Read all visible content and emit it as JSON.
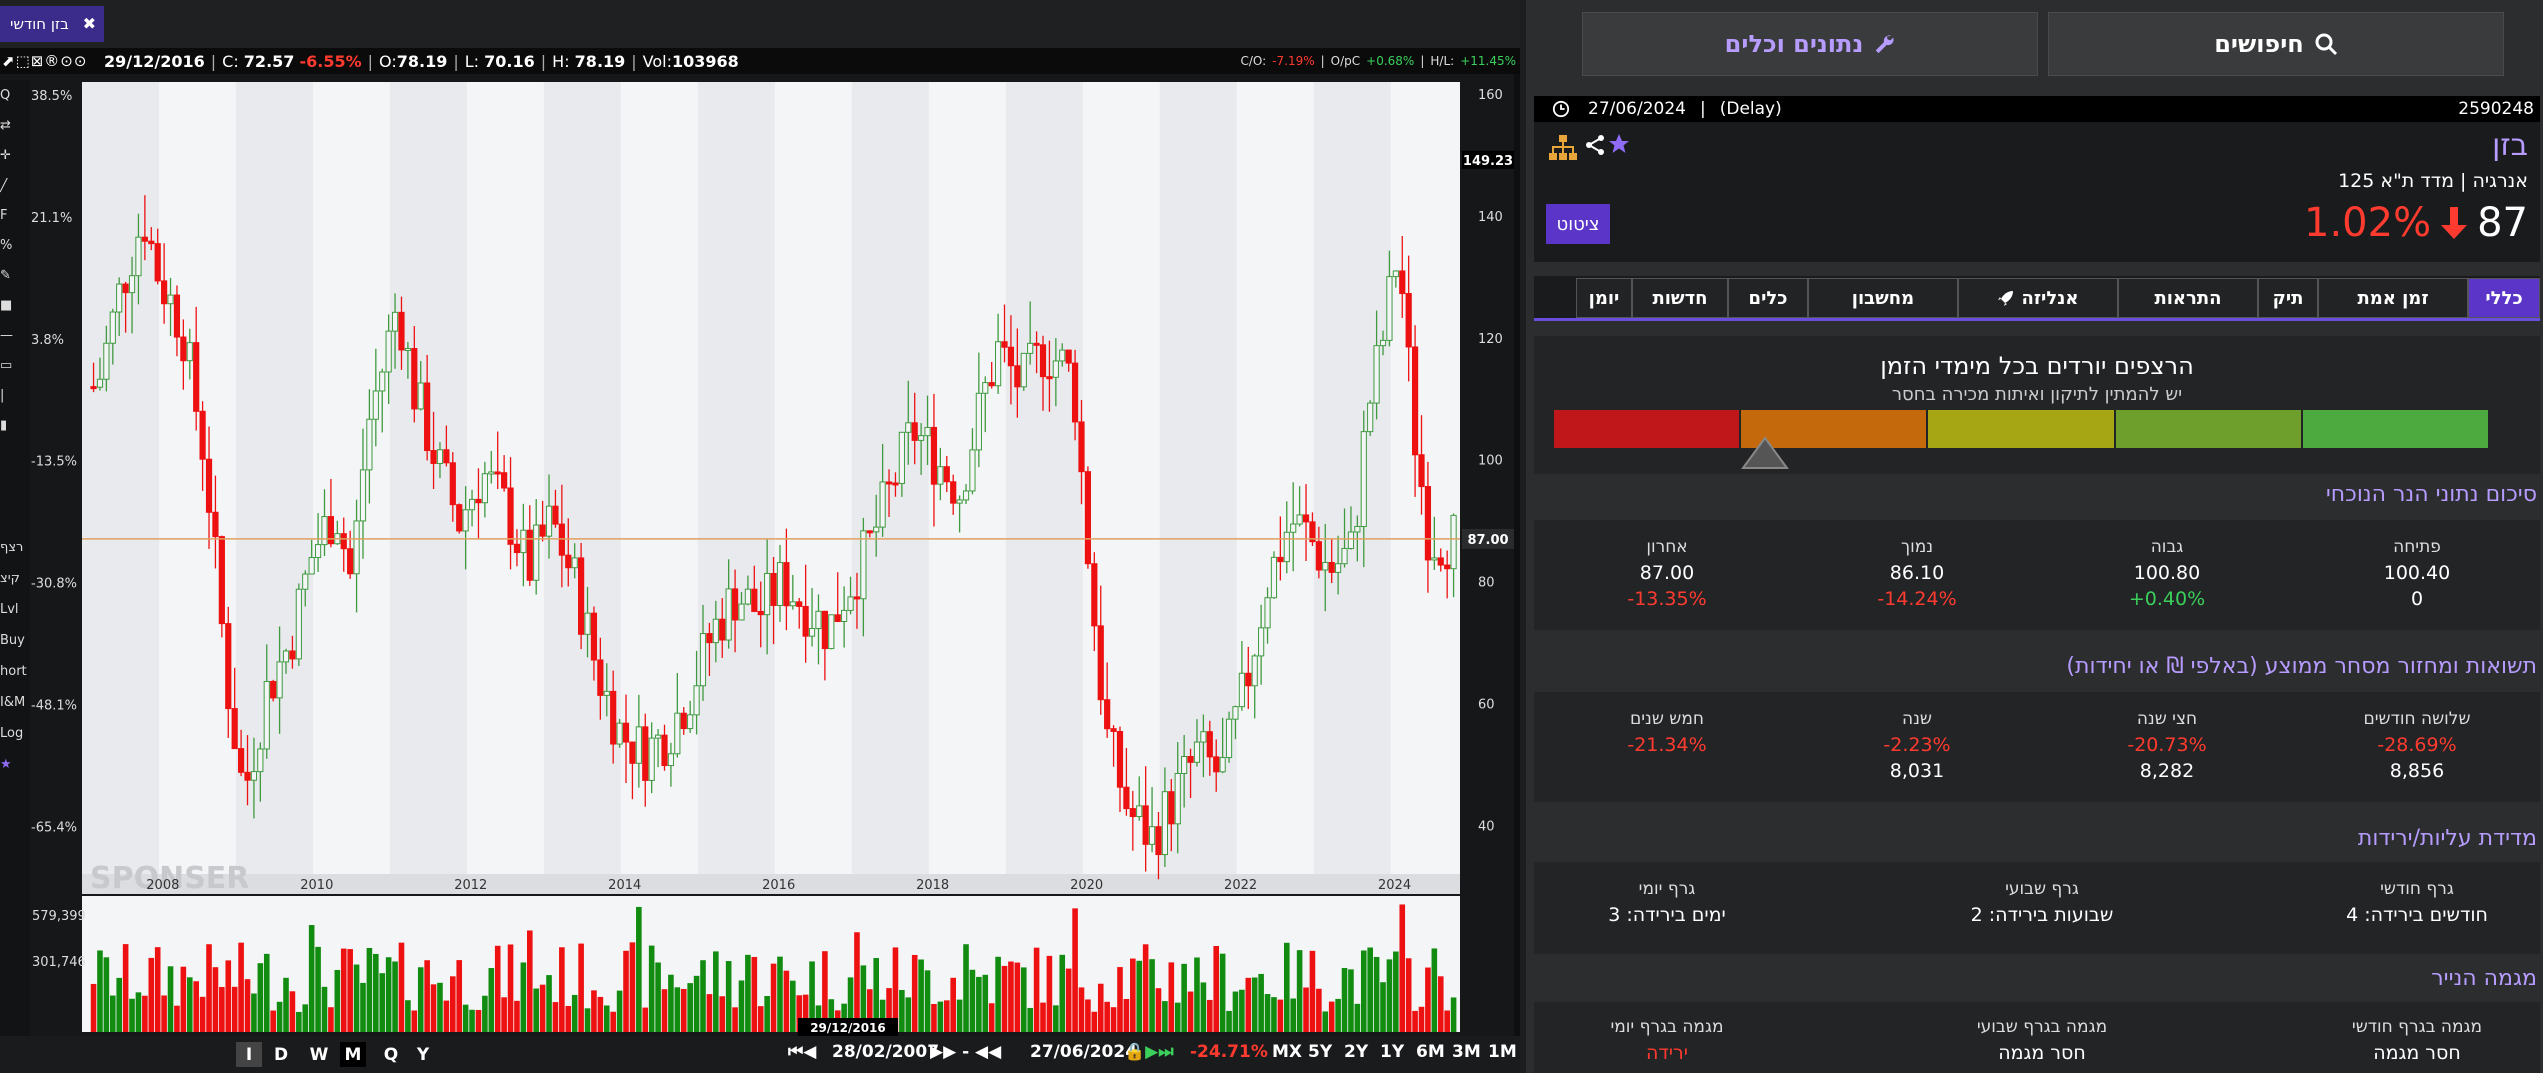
{
  "chart_window": {
    "tab_label": "בזן חודשי",
    "tab_close": "✖",
    "toolbar_icons": "⬈⬚⊠®⊙⊙",
    "info": {
      "date": "29/12/2016",
      "close_label": "C:",
      "close": "72.57",
      "change": "-6.55%",
      "open_label": "O:",
      "open": "78.19",
      "low_label": "L:",
      "low": "70.16",
      "high_label": "H:",
      "high": "78.19",
      "vol_label": "Vol:",
      "vol": "103968"
    },
    "right_stats": {
      "co_label": "C/O:",
      "co": "-7.19%",
      "opc_label": "O/pC",
      "opc": "+0.68%",
      "hl_label": "H/L:",
      "hl": "+11.45%"
    },
    "side_tools": [
      "Q",
      "⇄",
      "✛",
      "╱",
      "F",
      "%",
      "✎",
      "■",
      "—",
      "▭",
      "|",
      "▮",
      "רצף",
      "קיצ",
      "Lvl",
      "Buy",
      "hort",
      "I&M",
      "Log",
      "★"
    ],
    "price_marker": "149.23",
    "last_price_marker": "87.00",
    "hover_date": "29/12/2016",
    "watermark": "SPONSER",
    "volume_ticks": [
      "579,399",
      "301,746"
    ],
    "bottom": {
      "chart_types": [
        "I",
        "D",
        "W",
        "M",
        "Q",
        "Y"
      ],
      "active_period": "M",
      "start_date": "28/02/2007",
      "end_date": "27/06/2024",
      "range_change": "-24.71%",
      "zooms": [
        "MX",
        "5Y",
        "2Y",
        "1Y",
        "6M",
        "3M",
        "1M"
      ]
    }
  },
  "chart_data": {
    "type": "candlestick",
    "x_ticks": [
      "2008",
      "2010",
      "2012",
      "2014",
      "2016",
      "2018",
      "2020",
      "2022",
      "2024"
    ],
    "y_ticks_right": [
      160,
      140,
      120,
      100,
      80,
      60,
      40
    ],
    "y_ticks_left": [
      "38.5%",
      "21.1%",
      "3.8%",
      "-13.5%",
      "-30.8%",
      "-48.1%",
      "-65.4%"
    ],
    "ylim": [
      32,
      162
    ],
    "horizontal_line": 87,
    "approx_monthly_close": [
      [
        2007.2,
        112
      ],
      [
        2007.5,
        128
      ],
      [
        2007.8,
        140
      ],
      [
        2008.0,
        130
      ],
      [
        2008.3,
        122
      ],
      [
        2008.6,
        100
      ],
      [
        2008.9,
        62
      ],
      [
        2009.1,
        45
      ],
      [
        2009.4,
        62
      ],
      [
        2009.7,
        70
      ],
      [
        2010.0,
        85
      ],
      [
        2010.3,
        92
      ],
      [
        2010.5,
        80
      ],
      [
        2010.7,
        105
      ],
      [
        2010.9,
        115
      ],
      [
        2011.1,
        126
      ],
      [
        2011.3,
        112
      ],
      [
        2011.6,
        100
      ],
      [
        2011.9,
        90
      ],
      [
        2012.2,
        98
      ],
      [
        2012.5,
        92
      ],
      [
        2012.8,
        82
      ],
      [
        2013.1,
        90
      ],
      [
        2013.4,
        80
      ],
      [
        2013.7,
        65
      ],
      [
        2014.0,
        55
      ],
      [
        2014.3,
        52
      ],
      [
        2014.6,
        55
      ],
      [
        2014.9,
        62
      ],
      [
        2015.2,
        72
      ],
      [
        2015.5,
        78
      ],
      [
        2015.8,
        75
      ],
      [
        2016.1,
        80
      ],
      [
        2016.4,
        76
      ],
      [
        2016.7,
        72
      ],
      [
        2016.9,
        78
      ],
      [
        2017.2,
        85
      ],
      [
        2017.5,
        95
      ],
      [
        2017.8,
        105
      ],
      [
        2018.1,
        100
      ],
      [
        2018.4,
        95
      ],
      [
        2018.7,
        110
      ],
      [
        2018.9,
        118
      ],
      [
        2019.2,
        112
      ],
      [
        2019.5,
        118
      ],
      [
        2019.8,
        115
      ],
      [
        2019.9,
        110
      ],
      [
        2020.1,
        80
      ],
      [
        2020.3,
        55
      ],
      [
        2020.6,
        42
      ],
      [
        2020.9,
        38
      ],
      [
        2021.2,
        45
      ],
      [
        2021.5,
        52
      ],
      [
        2021.8,
        48
      ],
      [
        2022.1,
        62
      ],
      [
        2022.4,
        80
      ],
      [
        2022.7,
        90
      ],
      [
        2022.9,
        88
      ],
      [
        2023.2,
        82
      ],
      [
        2023.5,
        85
      ],
      [
        2023.7,
        108
      ],
      [
        2023.9,
        120
      ],
      [
        2024.1,
        135
      ],
      [
        2024.3,
        105
      ],
      [
        2024.5,
        87
      ]
    ]
  },
  "panel": {
    "search_label": "חיפושים",
    "tools_label": "נתונים וכלים",
    "date": "27/06/2024",
    "delay": "(Delay)",
    "security_id": "2590248",
    "name": "בזן",
    "subtitle": "אנרגיה | מדד ת\"א 125",
    "change_pct": "1.02%",
    "price": "87",
    "quote_button": "ציטוט",
    "tabs": [
      "כללי",
      "זמן אמת",
      "תיק",
      "התראות",
      "אנליזה",
      "מחשבון",
      "כלים",
      "חדשות",
      "יומן"
    ],
    "active_tab": "כללי",
    "trend": {
      "title": "הרצפים יורדים בכל מימדי הזמן",
      "subtitle": "יש להמתין לתיקון ואיתות מכירה בחסר",
      "colors": [
        "#c0171b",
        "#c56a0c",
        "#a6a614",
        "#6e9e2c",
        "#4caa3f"
      ],
      "level": 0.15
    },
    "summary": {
      "title": "סיכום נתוני הנר הנוכחי",
      "items": [
        {
          "label": "פתיחה",
          "value": "100.40",
          "change": "0"
        },
        {
          "label": "גבוה",
          "value": "100.80",
          "change": "+0.40%"
        },
        {
          "label": "נמוך",
          "value": "86.10",
          "change": "-14.24%"
        },
        {
          "label": "אחרון",
          "value": "87.00",
          "change": "-13.35%"
        }
      ]
    },
    "returns": {
      "title": "תשואות ומחזור מסחר ממוצע (באלפי ₪ או יחידות)",
      "items": [
        {
          "label": "שלושה חודשים",
          "change": "-28.69%",
          "value": "8,856"
        },
        {
          "label": "חצי שנה",
          "change": "-20.73%",
          "value": "8,282"
        },
        {
          "label": "שנה",
          "change": "-2.23%",
          "value": "8,031"
        },
        {
          "label": "חמש שנים",
          "change": "-21.34%",
          "value": ""
        }
      ]
    },
    "streaks": {
      "title": "מדידת עליות/ירידות",
      "items": [
        {
          "label": "גרף חודשי",
          "value": "חודשים בירידה: 4"
        },
        {
          "label": "גרף שבועי",
          "value": "שבועות בירידה: 2"
        },
        {
          "label": "גרף יומי",
          "value": "ימים בירידה: 3"
        }
      ]
    },
    "trend_state": {
      "title": "מגמה הנייר",
      "items": [
        {
          "label": "מגמה בגרף חודשי",
          "value": "חסר מגמה"
        },
        {
          "label": "מגמה בגרף שבועי",
          "value": "חסר מגמה"
        },
        {
          "label": "מגמה בגרף יומי",
          "value": "ירידה"
        }
      ]
    }
  }
}
